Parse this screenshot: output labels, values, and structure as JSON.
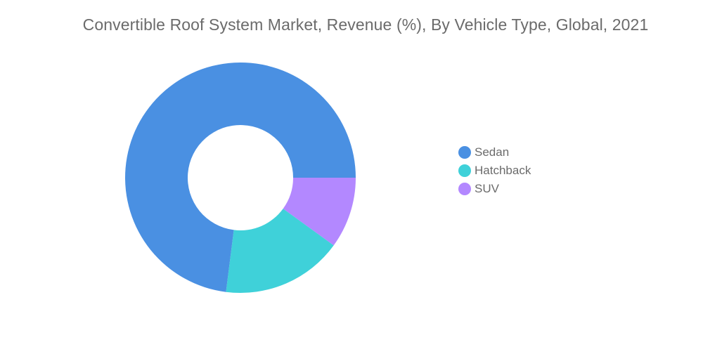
{
  "chart_data": {
    "type": "pie",
    "title": "Convertible Roof System Market, Revenue (%), By Vehicle Type, Global, 2021",
    "categories": [
      "Sedan",
      "Hatchback",
      "SUV"
    ],
    "values": [
      73,
      17,
      10
    ],
    "colors": [
      "#4a90e2",
      "#3fd1d9",
      "#b388ff"
    ],
    "legend_position": "right",
    "donut": true
  }
}
